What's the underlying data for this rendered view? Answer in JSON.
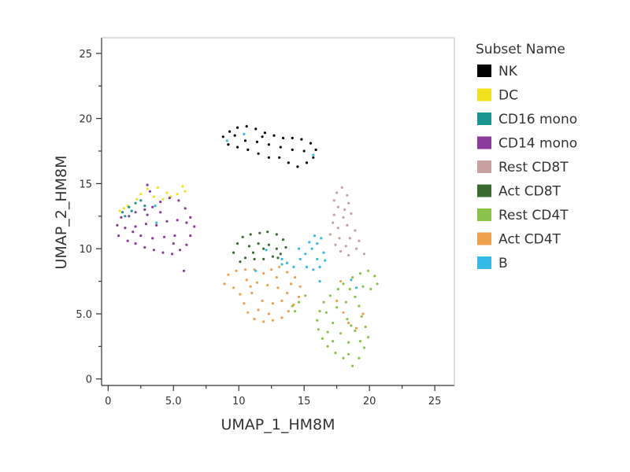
{
  "chart_data": {
    "type": "scatter",
    "xlabel": "UMAP_1_HM8M",
    "ylabel": "UMAP_2_HM8M",
    "xlim": [
      -0.5,
      26.5
    ],
    "ylim": [
      -0.5,
      26.2
    ],
    "xticks": [
      {
        "value": 0,
        "label": "0"
      },
      {
        "value": 5,
        "label": "5.0"
      },
      {
        "value": 10,
        "label": "10"
      },
      {
        "value": 15,
        "label": "15"
      },
      {
        "value": 20,
        "label": "20"
      },
      {
        "value": 25,
        "label": "25"
      }
    ],
    "yticks": [
      {
        "value": 0,
        "label": "0"
      },
      {
        "value": 5,
        "label": "5.0"
      },
      {
        "value": 10,
        "label": "10"
      },
      {
        "value": 15,
        "label": "15"
      },
      {
        "value": 20,
        "label": "20"
      },
      {
        "value": 25,
        "label": "25"
      }
    ],
    "grid": false,
    "legend": {
      "title": "Subset Name",
      "placement": "right"
    },
    "series": [
      {
        "name": "NK",
        "color": "#000000",
        "points": [
          [
            8.8,
            18.6
          ],
          [
            9.3,
            19.0
          ],
          [
            9.9,
            19.3
          ],
          [
            10.6,
            19.4
          ],
          [
            11.3,
            19.2
          ],
          [
            12.0,
            18.9
          ],
          [
            12.7,
            18.7
          ],
          [
            13.4,
            18.5
          ],
          [
            14.1,
            18.5
          ],
          [
            14.8,
            18.4
          ],
          [
            15.5,
            18.1
          ],
          [
            15.9,
            17.6
          ],
          [
            15.7,
            17.0
          ],
          [
            15.2,
            16.6
          ],
          [
            14.5,
            16.3
          ],
          [
            13.8,
            16.6
          ],
          [
            13.1,
            17.0
          ],
          [
            12.3,
            17.0
          ],
          [
            11.5,
            17.3
          ],
          [
            10.7,
            17.6
          ],
          [
            9.9,
            17.8
          ],
          [
            9.2,
            18.0
          ],
          [
            10.5,
            18.3
          ],
          [
            11.4,
            18.2
          ],
          [
            12.3,
            18.0
          ],
          [
            13.2,
            17.8
          ],
          [
            14.1,
            17.6
          ],
          [
            15.0,
            17.5
          ],
          [
            9.7,
            18.7
          ],
          [
            11.8,
            18.6
          ]
        ]
      },
      {
        "name": "DC",
        "color": "#f2e11e",
        "points": [
          [
            0.9,
            12.9
          ],
          [
            1.5,
            13.3
          ],
          [
            2.5,
            14.2
          ],
          [
            3.0,
            14.6
          ],
          [
            3.5,
            14.0
          ],
          [
            4.2,
            13.8
          ],
          [
            4.8,
            14.0
          ],
          [
            5.3,
            14.2
          ],
          [
            5.7,
            14.8
          ],
          [
            5.9,
            14.4
          ],
          [
            3.8,
            14.7
          ],
          [
            2.2,
            13.8
          ],
          [
            4.5,
            14.3
          ],
          [
            1.2,
            13.1
          ]
        ]
      },
      {
        "name": "CD16 mono",
        "color": "#19968f",
        "points": [
          [
            1.1,
            12.8
          ],
          [
            1.6,
            13.2
          ],
          [
            2.1,
            13.5
          ],
          [
            2.5,
            13.7
          ],
          [
            1.3,
            12.5
          ],
          [
            2.8,
            13.3
          ],
          [
            1.8,
            12.9
          ]
        ]
      },
      {
        "name": "CD14 mono",
        "color": "#8b3a9c",
        "points": [
          [
            0.8,
            11.0
          ],
          [
            0.7,
            11.8
          ],
          [
            1.0,
            12.4
          ],
          [
            1.6,
            12.5
          ],
          [
            2.1,
            12.8
          ],
          [
            2.8,
            13.0
          ],
          [
            3.4,
            13.2
          ],
          [
            4.0,
            13.6
          ],
          [
            4.7,
            13.9
          ],
          [
            5.4,
            13.7
          ],
          [
            5.9,
            13.1
          ],
          [
            6.3,
            12.4
          ],
          [
            6.6,
            11.7
          ],
          [
            6.3,
            11.0
          ],
          [
            6.0,
            10.3
          ],
          [
            5.5,
            9.9
          ],
          [
            4.9,
            9.6
          ],
          [
            4.2,
            9.7
          ],
          [
            3.5,
            9.9
          ],
          [
            2.8,
            10.1
          ],
          [
            2.1,
            10.4
          ],
          [
            1.5,
            10.6
          ],
          [
            1.3,
            11.6
          ],
          [
            2.1,
            11.7
          ],
          [
            2.9,
            11.9
          ],
          [
            3.7,
            11.8
          ],
          [
            4.5,
            12.1
          ],
          [
            5.3,
            12.2
          ],
          [
            6.0,
            12.0
          ],
          [
            2.5,
            11.0
          ],
          [
            3.4,
            10.8
          ],
          [
            4.3,
            10.9
          ],
          [
            5.1,
            11.0
          ],
          [
            3.0,
            12.6
          ],
          [
            4.0,
            12.8
          ],
          [
            5.0,
            10.4
          ],
          [
            3.0,
            14.9
          ],
          [
            3.2,
            14.4
          ],
          [
            5.8,
            8.3
          ],
          [
            1.9,
            11.3
          ]
        ]
      },
      {
        "name": "Rest CD8T",
        "color": "#c9a0a0",
        "points": [
          [
            17.9,
            14.7
          ],
          [
            17.5,
            14.3
          ],
          [
            18.3,
            14.1
          ],
          [
            17.3,
            13.7
          ],
          [
            18.4,
            13.5
          ],
          [
            17.6,
            13.2
          ],
          [
            18.1,
            13.0
          ],
          [
            17.3,
            12.6
          ],
          [
            18.0,
            12.4
          ],
          [
            18.6,
            12.7
          ],
          [
            17.2,
            12.0
          ],
          [
            17.6,
            11.6
          ],
          [
            18.3,
            11.8
          ],
          [
            18.9,
            11.4
          ],
          [
            17.0,
            11.1
          ],
          [
            17.7,
            10.8
          ],
          [
            18.5,
            10.8
          ],
          [
            19.2,
            10.6
          ],
          [
            17.4,
            10.3
          ],
          [
            18.2,
            10.2
          ],
          [
            19.0,
            10.0
          ],
          [
            19.6,
            9.6
          ],
          [
            17.8,
            9.8
          ],
          [
            18.4,
            9.5
          ]
        ]
      },
      {
        "name": "Act CD8T",
        "color": "#3c6b32",
        "points": [
          [
            9.6,
            9.7
          ],
          [
            9.9,
            10.4
          ],
          [
            10.3,
            10.9
          ],
          [
            10.9,
            11.1
          ],
          [
            11.6,
            11.2
          ],
          [
            12.2,
            11.3
          ],
          [
            12.9,
            11.1
          ],
          [
            13.4,
            10.7
          ],
          [
            13.6,
            10.1
          ],
          [
            13.2,
            9.6
          ],
          [
            12.6,
            9.4
          ],
          [
            11.9,
            9.2
          ],
          [
            11.2,
            9.2
          ],
          [
            10.5,
            9.3
          ],
          [
            10.1,
            9.0
          ],
          [
            10.8,
            10.2
          ],
          [
            11.5,
            10.4
          ],
          [
            12.3,
            10.3
          ],
          [
            12.9,
            10.0
          ],
          [
            11.1,
            9.7
          ],
          [
            11.9,
            10.0
          ],
          [
            13.0,
            9.3
          ]
        ]
      },
      {
        "name": "Rest CD4T",
        "color": "#8bc34a",
        "points": [
          [
            16.5,
            5.9
          ],
          [
            16.2,
            5.2
          ],
          [
            16.0,
            4.5
          ],
          [
            16.1,
            3.8
          ],
          [
            16.4,
            3.1
          ],
          [
            16.8,
            2.5
          ],
          [
            17.4,
            2.0
          ],
          [
            18.0,
            1.6
          ],
          [
            18.7,
            1.0
          ],
          [
            19.2,
            1.6
          ],
          [
            19.6,
            2.4
          ],
          [
            19.9,
            3.2
          ],
          [
            19.7,
            4.0
          ],
          [
            19.4,
            4.8
          ],
          [
            19.2,
            5.6
          ],
          [
            18.9,
            6.3
          ],
          [
            18.5,
            6.9
          ],
          [
            18.0,
            7.3
          ],
          [
            18.7,
            7.8
          ],
          [
            19.3,
            8.1
          ],
          [
            19.9,
            8.3
          ],
          [
            20.4,
            7.9
          ],
          [
            20.6,
            7.3
          ],
          [
            20.1,
            6.9
          ],
          [
            19.5,
            7.1
          ],
          [
            17.2,
            4.3
          ],
          [
            17.8,
            3.5
          ],
          [
            18.4,
            2.8
          ],
          [
            18.9,
            3.7
          ],
          [
            18.3,
            4.6
          ],
          [
            17.5,
            5.5
          ],
          [
            18.2,
            5.9
          ],
          [
            17.0,
            6.4
          ],
          [
            17.6,
            6.9
          ],
          [
            18.4,
            1.9
          ],
          [
            19.3,
            2.9
          ],
          [
            16.8,
            3.6
          ],
          [
            16.7,
            5.1
          ],
          [
            17.2,
            2.9
          ],
          [
            18.6,
            4.1
          ],
          [
            14.1,
            5.6
          ],
          [
            14.6,
            5.9
          ],
          [
            15.1,
            6.4
          ],
          [
            14.3,
            5.2
          ]
        ]
      },
      {
        "name": "Act CD4T",
        "color": "#f0a04b",
        "points": [
          [
            8.9,
            7.3
          ],
          [
            9.2,
            8.0
          ],
          [
            9.8,
            8.3
          ],
          [
            10.5,
            8.4
          ],
          [
            11.2,
            8.4
          ],
          [
            11.9,
            8.1
          ],
          [
            12.5,
            8.4
          ],
          [
            13.1,
            8.6
          ],
          [
            13.7,
            8.2
          ],
          [
            14.3,
            7.8
          ],
          [
            14.7,
            7.1
          ],
          [
            14.6,
            6.3
          ],
          [
            14.2,
            5.7
          ],
          [
            13.8,
            5.2
          ],
          [
            13.3,
            4.7
          ],
          [
            12.6,
            4.5
          ],
          [
            11.9,
            4.4
          ],
          [
            11.2,
            4.6
          ],
          [
            10.7,
            5.1
          ],
          [
            10.4,
            5.8
          ],
          [
            10.1,
            6.5
          ],
          [
            9.6,
            7.0
          ],
          [
            10.6,
            7.6
          ],
          [
            11.4,
            7.4
          ],
          [
            12.2,
            7.2
          ],
          [
            13.0,
            7.0
          ],
          [
            13.7,
            6.6
          ],
          [
            11.0,
            6.6
          ],
          [
            11.8,
            6.0
          ],
          [
            12.6,
            5.8
          ],
          [
            13.3,
            6.0
          ],
          [
            11.5,
            5.3
          ],
          [
            12.3,
            5.0
          ],
          [
            10.9,
            7.1
          ],
          [
            12.9,
            7.8
          ],
          [
            14.0,
            7.3
          ],
          [
            17.5,
            6.0
          ],
          [
            18.0,
            5.1
          ],
          [
            18.4,
            4.3
          ],
          [
            19.0,
            3.9
          ],
          [
            17.8,
            7.5
          ],
          [
            19.5,
            5.0
          ]
        ]
      },
      {
        "name": "B",
        "color": "#35b9e9",
        "points": [
          [
            14.7,
            9.2
          ],
          [
            15.1,
            9.6
          ],
          [
            15.6,
            10.0
          ],
          [
            16.0,
            10.4
          ],
          [
            16.3,
            10.8
          ],
          [
            15.8,
            11.0
          ],
          [
            16.5,
            9.7
          ],
          [
            16.6,
            9.1
          ],
          [
            16.2,
            8.6
          ],
          [
            15.7,
            8.4
          ],
          [
            15.2,
            8.6
          ],
          [
            14.2,
            8.6
          ],
          [
            13.7,
            8.9
          ],
          [
            13.3,
            9.2
          ],
          [
            14.6,
            10.0
          ],
          [
            15.4,
            10.5
          ],
          [
            16.0,
            9.2
          ],
          [
            16.2,
            7.5
          ],
          [
            13.3,
            8.8
          ],
          [
            10.4,
            18.8
          ],
          [
            15.7,
            17.2
          ],
          [
            9.1,
            18.3
          ],
          [
            3.7,
            12.0
          ],
          [
            3.6,
            13.3
          ],
          [
            11.3,
            8.3
          ],
          [
            18.6,
            7.6
          ],
          [
            19.0,
            7.0
          ],
          [
            12.1,
            9.9
          ]
        ]
      }
    ]
  }
}
